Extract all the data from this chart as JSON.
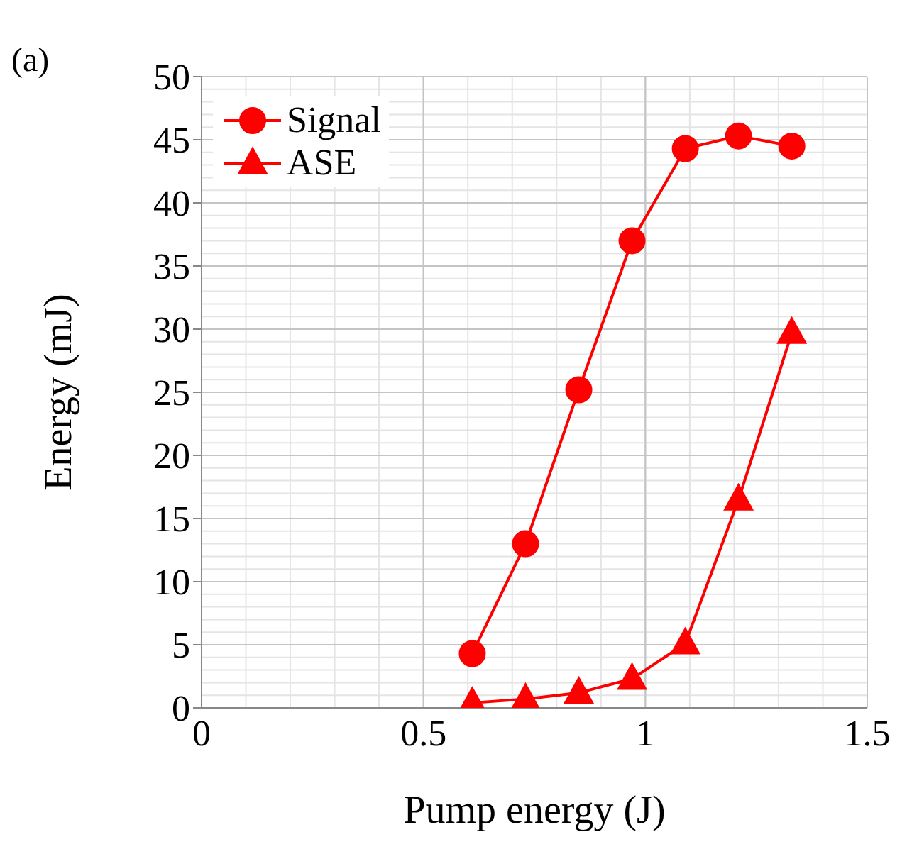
{
  "chart_data": {
    "type": "line",
    "xlabel": "Pump energy (J)",
    "ylabel": "Energy (mJ)",
    "annotations": [
      "(a)"
    ],
    "x": [
      0.61,
      0.73,
      0.85,
      0.97,
      1.09,
      1.21,
      1.33
    ],
    "series": [
      {
        "name": "Signal",
        "color": "#ff0000",
        "marker": "circle",
        "values": [
          4.3,
          13,
          25.2,
          37,
          44.3,
          45.3,
          44.5
        ]
      },
      {
        "name": "ASE",
        "color": "#ff0000",
        "marker": "triangle",
        "values": [
          0.4,
          0.7,
          1.2,
          2.3,
          5.1,
          16.5,
          29.7
        ]
      }
    ],
    "xlim": [
      0,
      1.5
    ],
    "xticks": [
      0,
      0.5,
      1,
      1.5
    ],
    "ylim": [
      0,
      50
    ],
    "yticks": [
      0,
      5,
      10,
      15,
      20,
      25,
      30,
      35,
      40,
      45,
      50
    ],
    "grid": true,
    "legend": "top left",
    "line_style": "solid"
  }
}
